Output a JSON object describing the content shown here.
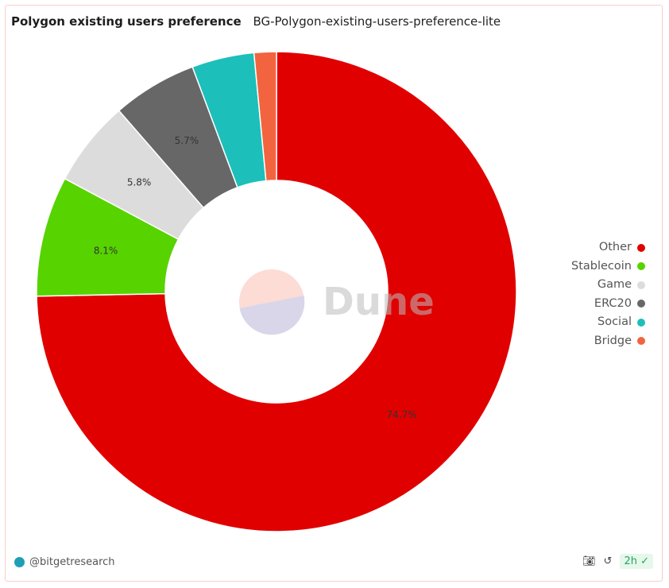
{
  "header": {
    "title": "Polygon existing users preference",
    "subtitle": "BG-Polygon-existing-users-preference-lite"
  },
  "watermark": "Dune",
  "footer": {
    "author": "@bitgetresearch",
    "freshness": "2h"
  },
  "icons": [
    "camera-icon",
    "refresh-icon",
    "check-circle-icon"
  ],
  "chart_data": {
    "type": "pie",
    "donut": true,
    "categories": [
      "Other",
      "Stablecoin",
      "Game",
      "ERC20",
      "Social",
      "Bridge"
    ],
    "values": [
      74.7,
      8.1,
      5.8,
      5.7,
      4.2,
      1.5
    ],
    "unit": "%",
    "colors": [
      "#e00000",
      "#57d300",
      "#dcdcdc",
      "#676767",
      "#1cbfba",
      "#f2643f"
    ],
    "data_labels": [
      "74.7%",
      "8.1%",
      "5.8%",
      "5.7%",
      "",
      ""
    ],
    "legend": {
      "position": "right"
    }
  }
}
